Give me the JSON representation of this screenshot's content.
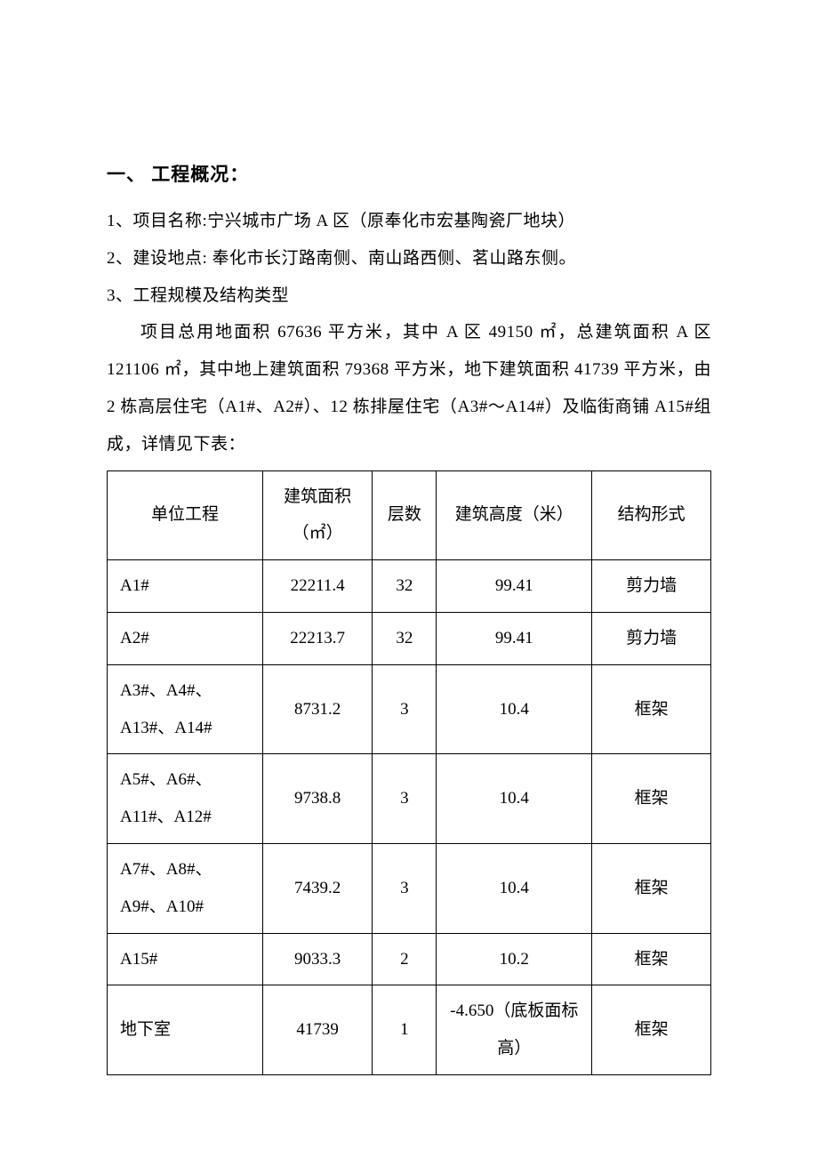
{
  "heading": "一、 工程概况：",
  "p1": "1、项目名称:宁兴城市广场 A 区（原奉化市宏基陶瓷厂地块）",
  "p2": "2、建设地点: 奉化市长汀路南侧、南山路西侧、茗山路东侧。",
  "p3": "3、工程规模及结构类型",
  "p4": "项目总用地面积 67636 平方米，其中 A 区 49150 ㎡，总建筑面积 A 区 121106 ㎡，其中地上建筑面积 79368 平方米，地下建筑面积 41739 平方米，由 2 栋高层住宅（A1#、A2#）、12 栋排屋住宅（A3#～A14#）及临街商铺 A15#组成，详情见下表：",
  "table": {
    "headers": [
      "单位工程",
      "建筑面积（㎡）",
      "层数",
      "建筑高度（米）",
      "结构形式"
    ],
    "rows": [
      [
        "A1#",
        "22211.4",
        "32",
        "99.41",
        "剪力墙"
      ],
      [
        "A2#",
        "22213.7",
        "32",
        "99.41",
        "剪力墙"
      ],
      [
        "A3#、A4#、A13#、A14#",
        "8731.2",
        "3",
        "10.4",
        "框架"
      ],
      [
        "A5#、A6#、A11#、A12#",
        "9738.8",
        "3",
        "10.4",
        "框架"
      ],
      [
        "A7#、A8#、A9#、A10#",
        "7439.2",
        "3",
        "10.4",
        "框架"
      ],
      [
        "A15#",
        "9033.3",
        "2",
        "10.2",
        "框架"
      ],
      [
        "地下室",
        "41739",
        "1",
        "-4.650（底板面标高）",
        "框架"
      ]
    ]
  },
  "colors": {
    "background": "#ffffff",
    "text": "#000000",
    "border": "#000000"
  },
  "typography": {
    "body_fontsize": 19,
    "heading_fontsize": 21,
    "line_height": 2.2,
    "font_family": "SimSun"
  }
}
